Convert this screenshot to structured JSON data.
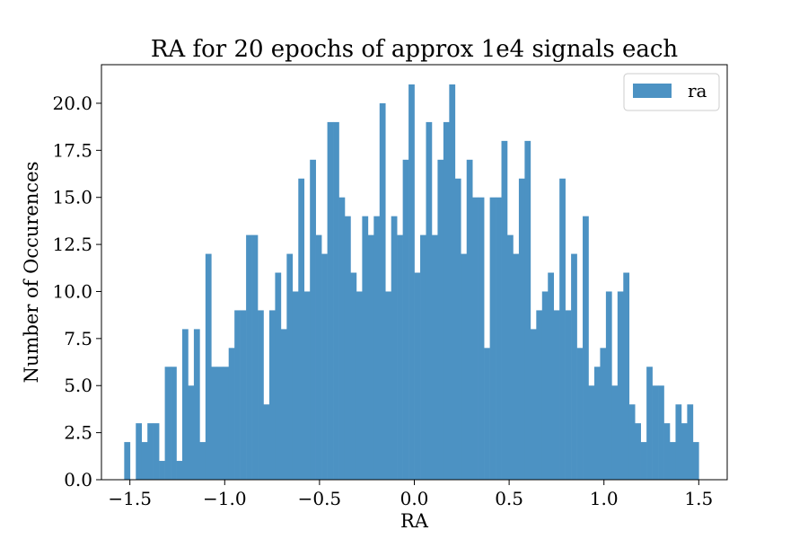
{
  "chart_data": {
    "type": "bar",
    "title": "RA for 20 epochs of approx 1e4 signals each",
    "xlabel": "RA",
    "ylabel": "Number of Occurences",
    "legend": {
      "label": "ra",
      "placement": "top-right"
    },
    "color": "#4c92c3",
    "xlim": [
      -1.65,
      1.65
    ],
    "ylim": [
      0,
      22.05
    ],
    "bin_range": [
      -1.53,
      1.5
    ],
    "x_ticks": [
      -1.5,
      -1.0,
      -0.5,
      0.0,
      0.5,
      1.0,
      1.5
    ],
    "x_tick_labels": [
      "−1.5",
      "−1.0",
      "−0.5",
      "0.0",
      "0.5",
      "1.0",
      "1.5"
    ],
    "y_ticks": [
      0,
      2.5,
      5,
      7.5,
      10,
      12.5,
      15,
      17.5,
      20
    ],
    "y_tick_labels": [
      "0.0",
      "2.5",
      "5.0",
      "7.5",
      "10.0",
      "12.5",
      "15.0",
      "17.5",
      "20.0"
    ],
    "values": [
      2,
      0,
      3,
      2,
      3,
      3,
      1,
      6,
      6,
      1,
      8,
      5,
      8,
      2,
      12,
      6,
      6,
      6,
      7,
      9,
      9,
      13,
      13,
      9,
      4,
      9,
      11,
      8,
      12,
      10,
      16,
      10,
      17,
      13,
      12,
      19,
      19,
      15,
      14,
      11,
      10,
      14,
      13,
      14,
      20,
      10,
      14,
      13,
      17,
      21,
      11,
      13,
      19,
      13,
      17,
      19,
      21,
      16,
      12,
      17,
      15,
      15,
      7,
      15,
      15,
      18,
      13,
      12,
      16,
      18,
      8,
      9,
      10,
      11,
      9,
      16,
      9,
      12,
      7,
      14,
      5,
      6,
      7,
      10,
      5,
      10,
      11,
      4,
      3,
      2,
      6,
      5,
      5,
      3,
      2,
      4,
      3,
      4,
      2
    ]
  }
}
